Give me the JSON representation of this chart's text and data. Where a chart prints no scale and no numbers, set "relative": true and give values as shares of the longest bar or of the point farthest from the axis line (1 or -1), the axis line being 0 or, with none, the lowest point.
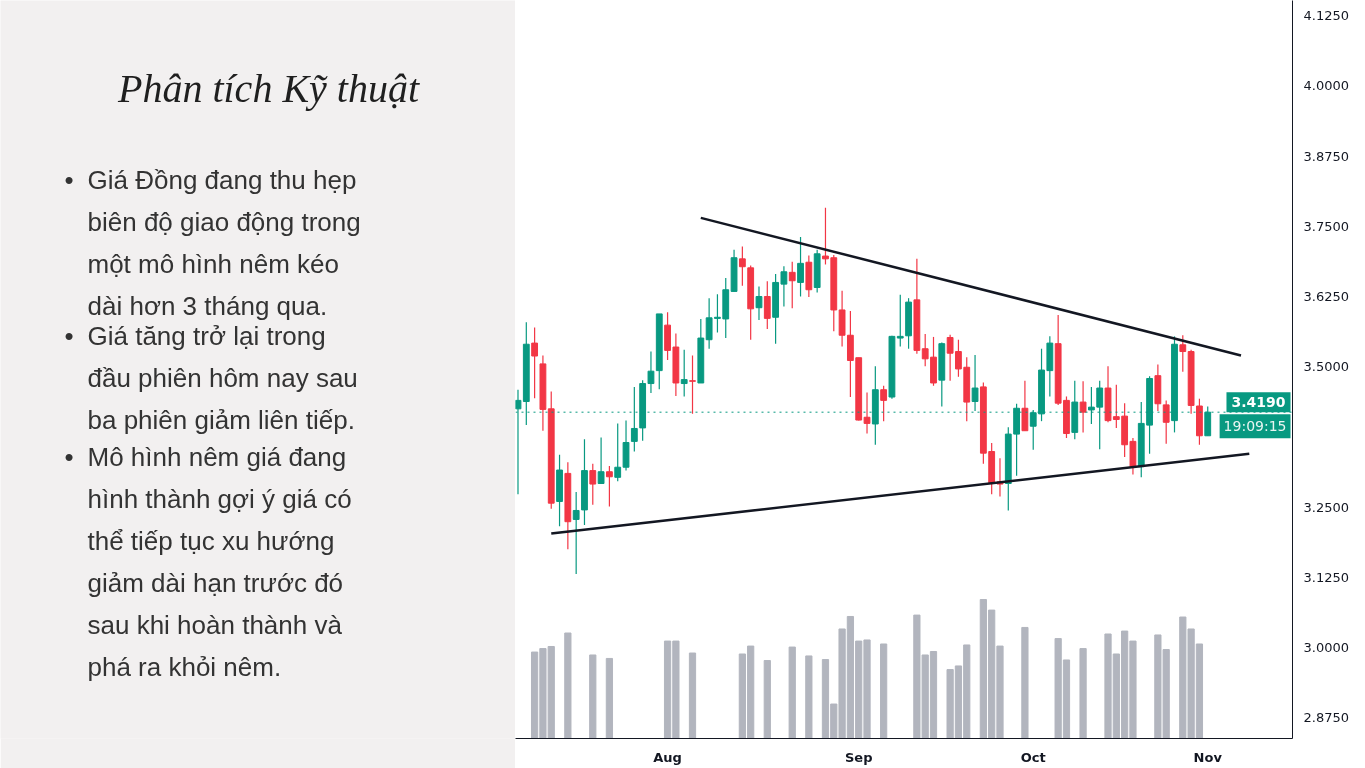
{
  "chart_data": [
    {
      "type": "candlestick",
      "title": "Phân tích Kỹ thuật",
      "annotations": [
        "• Giá Đồng đang thu hẹp\nbiên độ giao động trong\nmột mô hình nêm kéo\ndài hơn 3 tháng qua.",
        "• Giá tăng trở lại trong\nđầu phiên hôm nay sau\nba phiên giảm liên tiếp.",
        "• Mô hình nêm giá đang\nhình thành gợi ý giá có\nthể tiếp tục xu hướng\ngiảm dài hạn trước đó\nsau khi hoàn thành và\nphá ra khỏi nêm.",
        {
          "text": "19:09:15",
          "y": 3.419
        }
      ],
      "categories": [
        null,
        null,
        null,
        null,
        null,
        null,
        null,
        null,
        null,
        null,
        null,
        null,
        null,
        null,
        null,
        null,
        null,
        null,
        "Aug",
        null,
        null,
        null,
        null,
        null,
        null,
        null,
        null,
        null,
        null,
        null,
        null,
        null,
        null,
        null,
        null,
        null,
        null,
        null,
        null,
        null,
        null,
        "Sep",
        null,
        null,
        null,
        null,
        null,
        null,
        null,
        null,
        null,
        null,
        null,
        null,
        null,
        null,
        null,
        null,
        null,
        null,
        null,
        null,
        "Oct",
        null,
        null,
        null,
        null,
        null,
        null,
        null,
        null,
        null,
        null,
        null,
        null,
        null,
        null,
        null,
        null,
        null,
        null,
        null,
        null,
        "Nov",
        null,
        null,
        null,
        null,
        null
      ],
      "ohlc": [
        [
          3.425,
          3.459,
          3.273,
          3.44
        ],
        [
          3.438,
          3.579,
          3.396,
          3.54
        ],
        [
          3.542,
          3.57,
          3.444,
          3.519
        ],
        [
          3.505,
          3.52,
          3.386,
          3.424
        ],
        [
          3.425,
          3.456,
          3.247,
          3.257
        ],
        [
          3.26,
          3.343,
          3.216,
          3.316
        ],
        [
          3.31,
          3.33,
          3.175,
          3.224
        ],
        [
          3.228,
          3.277,
          3.131,
          3.244
        ],
        [
          3.245,
          3.371,
          3.218,
          3.315
        ],
        [
          3.315,
          3.327,
          3.254,
          3.291
        ],
        [
          3.292,
          3.374,
          3.291,
          3.313
        ],
        [
          3.313,
          3.323,
          3.251,
          3.304
        ],
        [
          3.303,
          3.399,
          3.296,
          3.321
        ],
        [
          3.321,
          3.404,
          3.315,
          3.365
        ],
        [
          3.367,
          3.464,
          3.349,
          3.39
        ],
        [
          3.391,
          3.476,
          3.368,
          3.47
        ],
        [
          3.47,
          3.527,
          3.453,
          3.492
        ],
        [
          3.493,
          3.594,
          3.46,
          3.594
        ],
        [
          3.574,
          3.597,
          3.512,
          3.529
        ],
        [
          3.535,
          3.559,
          3.448,
          3.471
        ],
        [
          3.47,
          3.53,
          3.447,
          3.477
        ],
        [
          3.475,
          3.52,
          3.416,
          3.474
        ],
        [
          3.471,
          3.585,
          3.471,
          3.551
        ],
        [
          3.548,
          3.622,
          3.532,
          3.587
        ],
        [
          3.586,
          3.629,
          3.561,
          3.588
        ],
        [
          3.585,
          3.658,
          3.551,
          3.637
        ],
        [
          3.634,
          3.708,
          3.634,
          3.694
        ],
        [
          3.692,
          3.714,
          3.644,
          3.678
        ],
        [
          3.676,
          3.68,
          3.548,
          3.603
        ],
        [
          3.605,
          3.643,
          3.583,
          3.625
        ],
        [
          3.625,
          3.652,
          3.567,
          3.586
        ],
        [
          3.588,
          3.665,
          3.541,
          3.65
        ],
        [
          3.647,
          3.679,
          3.607,
          3.669
        ],
        [
          3.668,
          3.687,
          3.604,
          3.653
        ],
        [
          3.65,
          3.731,
          3.625,
          3.684
        ],
        [
          3.686,
          3.698,
          3.624,
          3.637
        ],
        [
          3.641,
          3.708,
          3.632,
          3.701
        ],
        [
          3.697,
          3.783,
          3.682,
          3.692
        ],
        [
          3.694,
          3.699,
          3.563,
          3.601
        ],
        [
          3.601,
          3.635,
          3.536,
          3.556
        ],
        [
          3.556,
          3.599,
          3.446,
          3.511
        ],
        [
          3.516,
          3.516,
          3.404,
          3.405
        ],
        [
          3.41,
          3.454,
          3.381,
          3.399
        ],
        [
          3.398,
          3.501,
          3.361,
          3.459
        ],
        [
          3.459,
          3.466,
          3.403,
          3.44
        ],
        [
          3.446,
          3.555,
          3.443,
          3.554
        ],
        [
          3.551,
          3.628,
          3.536,
          3.554
        ],
        [
          3.555,
          3.622,
          3.532,
          3.615
        ],
        [
          3.619,
          3.692,
          3.523,
          3.529
        ],
        [
          3.532,
          3.558,
          3.501,
          3.514
        ],
        [
          3.517,
          3.553,
          3.466,
          3.471
        ],
        [
          3.476,
          3.543,
          3.429,
          3.541
        ],
        [
          3.552,
          3.557,
          3.475,
          3.524
        ],
        [
          3.527,
          3.548,
          3.482,
          3.496
        ],
        [
          3.499,
          3.517,
          3.403,
          3.437
        ],
        [
          3.438,
          3.521,
          3.421,
          3.462
        ],
        [
          3.464,
          3.472,
          3.327,
          3.346
        ],
        [
          3.349,
          3.364,
          3.273,
          3.292
        ],
        [
          3.295,
          3.337,
          3.269,
          3.291
        ],
        [
          3.292,
          3.392,
          3.244,
          3.38
        ],
        [
          3.38,
          3.434,
          3.306,
          3.426
        ],
        [
          3.426,
          3.475,
          3.386,
          3.386
        ],
        [
          3.394,
          3.423,
          3.352,
          3.418
        ],
        [
          3.416,
          3.532,
          3.403,
          3.494
        ],
        [
          3.493,
          3.554,
          3.447,
          3.542
        ],
        [
          3.541,
          3.592,
          3.432,
          3.435
        ],
        [
          3.44,
          3.447,
          3.373,
          3.381
        ],
        [
          3.383,
          3.475,
          3.371,
          3.437
        ],
        [
          3.437,
          3.474,
          3.383,
          3.419
        ],
        [
          3.423,
          3.464,
          3.398,
          3.428
        ],
        [
          3.428,
          3.475,
          3.353,
          3.462
        ],
        [
          3.462,
          3.501,
          3.401,
          3.404
        ],
        [
          3.411,
          3.468,
          3.391,
          3.406
        ],
        [
          3.412,
          3.435,
          3.339,
          3.361
        ],
        [
          3.367,
          3.373,
          3.308,
          3.322
        ],
        [
          3.322,
          3.437,
          3.303,
          3.399
        ],
        [
          3.396,
          3.483,
          3.345,
          3.479
        ],
        [
          3.484,
          3.504,
          3.421,
          3.434
        ],
        [
          3.432,
          3.44,
          3.363,
          3.401
        ],
        [
          3.404,
          3.554,
          3.383,
          3.54
        ],
        [
          3.539,
          3.556,
          3.491,
          3.527
        ],
        [
          3.527,
          3.53,
          3.416,
          3.431
        ],
        [
          3.43,
          3.443,
          3.361,
          3.377
        ],
        [
          3.377,
          3.429,
          3.377,
          3.419
        ],
        null,
        null,
        null,
        null,
        null
      ],
      "series": [
        {
          "type": "line",
          "color": "#131722",
          "values": [
            null,
            null,
            null,
            null,
            null,
            null,
            null,
            null,
            null,
            null,
            null,
            null,
            null,
            null,
            null,
            null,
            null,
            null,
            null,
            null,
            null,
            null,
            3.765,
            null,
            null,
            null,
            null,
            null,
            null,
            null,
            null,
            null,
            null,
            null,
            null,
            null,
            null,
            null,
            null,
            null,
            null,
            null,
            null,
            null,
            null,
            null,
            null,
            null,
            null,
            null,
            null,
            null,
            null,
            null,
            null,
            null,
            null,
            null,
            null,
            null,
            null,
            null,
            null,
            null,
            null,
            null,
            null,
            null,
            null,
            null,
            null,
            null,
            null,
            null,
            null,
            null,
            null,
            null,
            null,
            null,
            null,
            null,
            null,
            null,
            null,
            null,
            null,
            3.52,
            null
          ]
        },
        {
          "type": "line",
          "color": "#131722",
          "values": [
            null,
            null,
            null,
            null,
            3.203,
            null,
            null,
            null,
            null,
            null,
            null,
            null,
            null,
            null,
            null,
            null,
            null,
            null,
            null,
            null,
            null,
            null,
            null,
            null,
            null,
            null,
            null,
            null,
            null,
            null,
            null,
            null,
            null,
            null,
            null,
            null,
            null,
            null,
            null,
            null,
            null,
            null,
            null,
            null,
            null,
            null,
            null,
            null,
            null,
            null,
            null,
            null,
            null,
            null,
            null,
            null,
            null,
            null,
            null,
            null,
            null,
            null,
            null,
            null,
            null,
            null,
            null,
            null,
            null,
            null,
            null,
            null,
            null,
            null,
            null,
            null,
            null,
            null,
            null,
            null,
            null,
            null,
            null,
            null,
            null,
            null,
            null,
            null,
            3.345
          ]
        }
      ],
      "ylim": [
        2.838,
        4.152
      ],
      "yticks": [
        {
          "value": 2.875,
          "label": "2.8750"
        },
        {
          "value": 3.0,
          "label": "3.0000"
        },
        {
          "value": 3.125,
          "label": "3.1250"
        },
        {
          "value": 3.25,
          "label": "3.2500"
        },
        {
          "value": 3.5,
          "label": "3.5000"
        },
        {
          "value": 3.625,
          "label": "3.6250"
        },
        {
          "value": 3.75,
          "label": "3.7500"
        },
        {
          "value": 3.875,
          "label": "3.8750"
        },
        {
          "value": 4.0,
          "label": "4.0000"
        },
        {
          "value": 4.125,
          "label": "4.1250"
        }
      ],
      "ref_lines": [
        {
          "axis": "y",
          "value": 3.419,
          "label": "3.4190",
          "color": "#089981",
          "line_style": "dotted"
        }
      ]
    },
    {
      "type": "bar",
      "relative": true,
      "tick_labels": false,
      "color": "#b2b5be",
      "categories": [
        null,
        null,
        null,
        null,
        null,
        null,
        null,
        null,
        null,
        null,
        null,
        null,
        null,
        null,
        null,
        null,
        null,
        null,
        null,
        null,
        null,
        null,
        null,
        null,
        null,
        null,
        null,
        null,
        null,
        null,
        null,
        null,
        null,
        null,
        null,
        null,
        null,
        null,
        null,
        null,
        null,
        null,
        null,
        null,
        null,
        null,
        null,
        null,
        null,
        null,
        null,
        null,
        null,
        null,
        null,
        null,
        null,
        null,
        null,
        null,
        null,
        null,
        null,
        null,
        null,
        null,
        null,
        null,
        null,
        null,
        null,
        null,
        null,
        null,
        null,
        null,
        null,
        null,
        null,
        null,
        null,
        null,
        null,
        null,
        null,
        null,
        null,
        null,
        null
      ],
      "values": [
        null,
        null,
        0.622,
        0.647,
        0.662,
        null,
        0.759,
        null,
        null,
        0.601,
        null,
        0.576,
        null,
        null,
        null,
        null,
        null,
        null,
        0.701,
        0.701,
        null,
        0.615,
        null,
        null,
        null,
        null,
        null,
        0.608,
        0.665,
        null,
        0.561,
        null,
        null,
        0.658,
        null,
        0.594,
        null,
        0.568,
        0.248,
        0.788,
        0.878,
        0.701,
        0.709,
        null,
        0.68,
        null,
        null,
        null,
        0.888,
        0.601,
        0.626,
        null,
        0.496,
        0.522,
        0.673,
        null,
        1,
        0.924,
        0.665,
        null,
        null,
        0.799,
        null,
        null,
        null,
        0.719,
        0.565,
        null,
        0.647,
        null,
        null,
        0.752,
        0.608,
        0.773,
        0.701,
        null,
        null,
        0.745,
        0.64,
        null,
        0.874,
        0.788,
        0.68,
        null,
        null,
        null,
        null,
        null,
        null
      ]
    }
  ]
}
